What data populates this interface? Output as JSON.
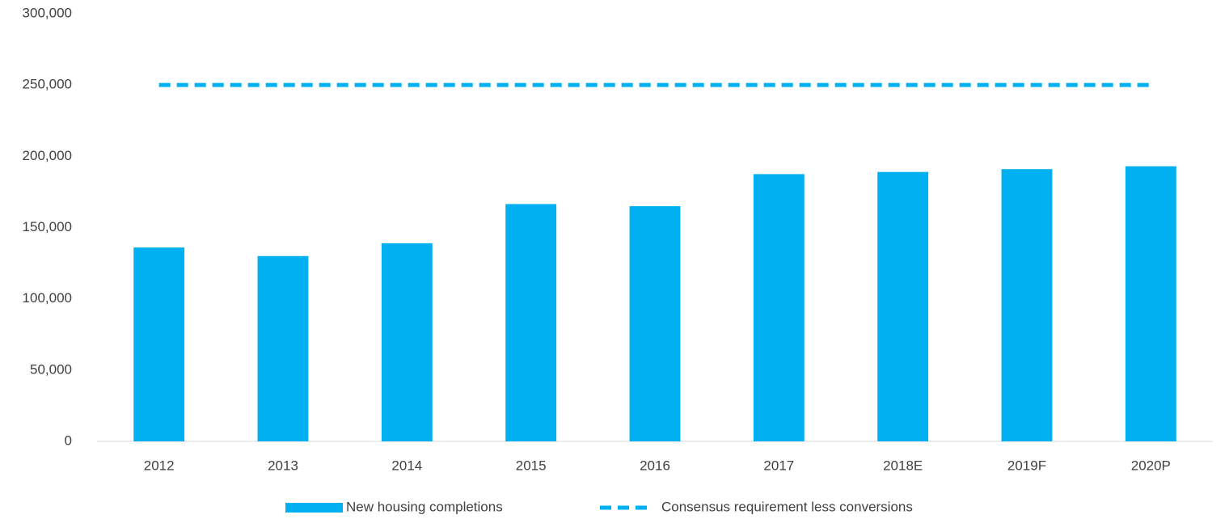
{
  "chart_data": {
    "type": "bar",
    "categories": [
      "2012",
      "2013",
      "2014",
      "2015",
      "2016",
      "2017",
      "2018E",
      "2019F",
      "2020P"
    ],
    "series": [
      {
        "name": "New housing completions",
        "type": "bar",
        "color": "#00b0f0",
        "values": [
          136000,
          130000,
          139000,
          166500,
          165000,
          187500,
          189000,
          191000,
          193000
        ]
      },
      {
        "name": "Consensus requirement less conversions",
        "type": "line",
        "dashed": true,
        "color": "#00b0f0",
        "values": [
          250000,
          250000,
          250000,
          250000,
          250000,
          250000,
          250000,
          250000,
          250000
        ]
      }
    ],
    "ylim": [
      0,
      300000
    ],
    "yticks": [
      {
        "value": 0,
        "label": "0"
      },
      {
        "value": 50000,
        "label": "50,000"
      },
      {
        "value": 100000,
        "label": "100,000"
      },
      {
        "value": 150000,
        "label": "150,000"
      },
      {
        "value": 200000,
        "label": "200,000"
      },
      {
        "value": 250000,
        "label": "250,000"
      },
      {
        "value": 300000,
        "label": "300,000"
      }
    ],
    "grid": false,
    "legend": "bottom"
  }
}
